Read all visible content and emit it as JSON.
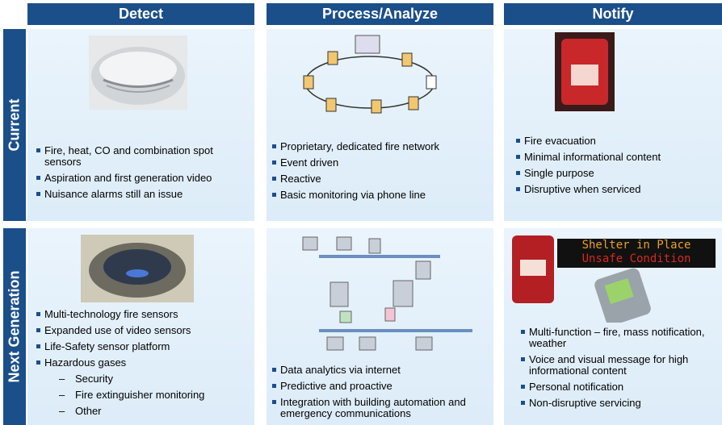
{
  "columns": [
    "Detect",
    "Process/Analyze",
    "Notify"
  ],
  "rows": [
    {
      "label": "Current",
      "cells": [
        {
          "bullets": [
            "Fire, heat, CO and combination spot sensors",
            "Aspiration and first generation video",
            "Nuisance alarms still an issue"
          ]
        },
        {
          "bullets": [
            "Proprietary, dedicated fire network",
            "Event driven",
            "Reactive",
            "Basic monitoring via phone line"
          ]
        },
        {
          "bullets": [
            "Fire evacuation",
            "Minimal informational content",
            "Single purpose",
            "Disruptive when serviced"
          ]
        }
      ]
    },
    {
      "label": "Next Generation",
      "cells": [
        {
          "bullets": [
            "Multi-technology fire sensors",
            "Expanded use of video sensors",
            "Life-Safety sensor platform",
            {
              "text": "Hazardous gases",
              "sub": [
                "Security",
                "Fire extinguisher monitoring",
                "Other"
              ]
            }
          ]
        },
        {
          "bullets": [
            "Data analytics via internet",
            "Predictive and proactive",
            "Integration with building automation and emergency communications"
          ]
        },
        {
          "bullets": [
            "Multi-function – fire, mass notification, weather",
            "Voice and visual message for high informational content",
            "Personal notification",
            "Non-disruptive servicing"
          ],
          "sign": [
            "Shelter in Place",
            "Unsafe Condition"
          ]
        }
      ]
    }
  ]
}
